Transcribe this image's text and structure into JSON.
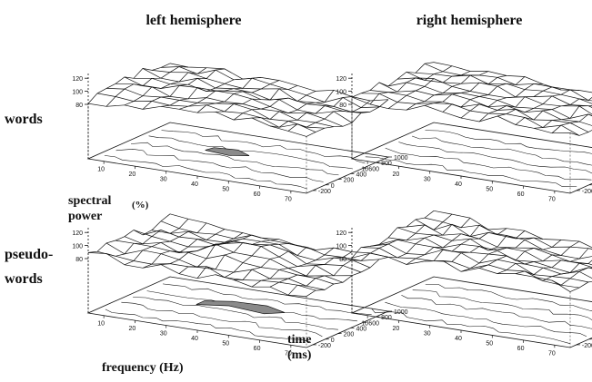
{
  "figure": {
    "column_headers": [
      "left hemisphere",
      "right hemisphere"
    ],
    "row_labels": [
      [
        "words"
      ],
      [
        "pseudo-",
        "words"
      ]
    ],
    "z_label": [
      "spectral",
      "power"
    ],
    "z_unit": "(%)",
    "x_label": "frequency (Hz)",
    "y_label": [
      "time",
      "(ms)"
    ]
  },
  "chart_data": {
    "type": "3d-surface",
    "layout": "2x2 grid",
    "x_ticks": [
      10,
      20,
      30,
      40,
      50,
      60,
      70
    ],
    "y_ticks": [
      -200,
      0,
      200,
      400,
      600,
      800,
      1000
    ],
    "z_ticks": [
      80,
      100,
      120
    ],
    "zlim": [
      80,
      130
    ],
    "panels": [
      {
        "row": "words",
        "column": "left hemisphere",
        "peak_power": 125,
        "shaded_contour": "x 28-40 Hz, y 500-800 ms"
      },
      {
        "row": "words",
        "column": "right hemisphere",
        "peak_power": 120
      },
      {
        "row": "pseudo-words",
        "column": "left hemisphere",
        "peak_power": 128,
        "shaded_contour": "x 25-55 Hz, y 300-800 ms"
      },
      {
        "row": "pseudo-words",
        "column": "right hemisphere",
        "peak_power": 122
      }
    ],
    "colors": {
      "ink": "#111111",
      "shade": "#8a8a8a"
    }
  }
}
